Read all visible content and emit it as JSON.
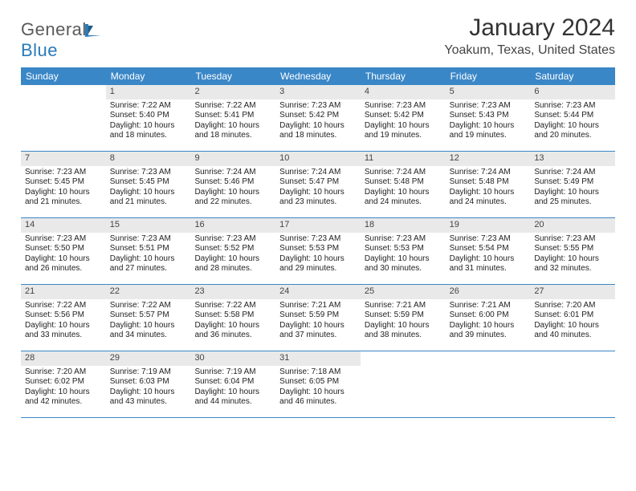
{
  "logo": {
    "text1": "General",
    "text2": "Blue",
    "color_gray": "#5a5a5a",
    "color_blue": "#2a7ab8"
  },
  "title": "January 2024",
  "location": "Yoakum, Texas, United States",
  "colors": {
    "header_bg": "#3a87c7",
    "header_fg": "#ffffff",
    "daynum_bg": "#e9e9e9",
    "border": "#3a87c7",
    "body_bg": "#ffffff"
  },
  "day_headers": [
    "Sunday",
    "Monday",
    "Tuesday",
    "Wednesday",
    "Thursday",
    "Friday",
    "Saturday"
  ],
  "weeks": [
    [
      {},
      {
        "n": "1",
        "sr": "Sunrise: 7:22 AM",
        "ss": "Sunset: 5:40 PM",
        "dl1": "Daylight: 10 hours",
        "dl2": "and 18 minutes."
      },
      {
        "n": "2",
        "sr": "Sunrise: 7:22 AM",
        "ss": "Sunset: 5:41 PM",
        "dl1": "Daylight: 10 hours",
        "dl2": "and 18 minutes."
      },
      {
        "n": "3",
        "sr": "Sunrise: 7:23 AM",
        "ss": "Sunset: 5:42 PM",
        "dl1": "Daylight: 10 hours",
        "dl2": "and 18 minutes."
      },
      {
        "n": "4",
        "sr": "Sunrise: 7:23 AM",
        "ss": "Sunset: 5:42 PM",
        "dl1": "Daylight: 10 hours",
        "dl2": "and 19 minutes."
      },
      {
        "n": "5",
        "sr": "Sunrise: 7:23 AM",
        "ss": "Sunset: 5:43 PM",
        "dl1": "Daylight: 10 hours",
        "dl2": "and 19 minutes."
      },
      {
        "n": "6",
        "sr": "Sunrise: 7:23 AM",
        "ss": "Sunset: 5:44 PM",
        "dl1": "Daylight: 10 hours",
        "dl2": "and 20 minutes."
      }
    ],
    [
      {
        "n": "7",
        "sr": "Sunrise: 7:23 AM",
        "ss": "Sunset: 5:45 PM",
        "dl1": "Daylight: 10 hours",
        "dl2": "and 21 minutes."
      },
      {
        "n": "8",
        "sr": "Sunrise: 7:23 AM",
        "ss": "Sunset: 5:45 PM",
        "dl1": "Daylight: 10 hours",
        "dl2": "and 21 minutes."
      },
      {
        "n": "9",
        "sr": "Sunrise: 7:24 AM",
        "ss": "Sunset: 5:46 PM",
        "dl1": "Daylight: 10 hours",
        "dl2": "and 22 minutes."
      },
      {
        "n": "10",
        "sr": "Sunrise: 7:24 AM",
        "ss": "Sunset: 5:47 PM",
        "dl1": "Daylight: 10 hours",
        "dl2": "and 23 minutes."
      },
      {
        "n": "11",
        "sr": "Sunrise: 7:24 AM",
        "ss": "Sunset: 5:48 PM",
        "dl1": "Daylight: 10 hours",
        "dl2": "and 24 minutes."
      },
      {
        "n": "12",
        "sr": "Sunrise: 7:24 AM",
        "ss": "Sunset: 5:48 PM",
        "dl1": "Daylight: 10 hours",
        "dl2": "and 24 minutes."
      },
      {
        "n": "13",
        "sr": "Sunrise: 7:24 AM",
        "ss": "Sunset: 5:49 PM",
        "dl1": "Daylight: 10 hours",
        "dl2": "and 25 minutes."
      }
    ],
    [
      {
        "n": "14",
        "sr": "Sunrise: 7:23 AM",
        "ss": "Sunset: 5:50 PM",
        "dl1": "Daylight: 10 hours",
        "dl2": "and 26 minutes."
      },
      {
        "n": "15",
        "sr": "Sunrise: 7:23 AM",
        "ss": "Sunset: 5:51 PM",
        "dl1": "Daylight: 10 hours",
        "dl2": "and 27 minutes."
      },
      {
        "n": "16",
        "sr": "Sunrise: 7:23 AM",
        "ss": "Sunset: 5:52 PM",
        "dl1": "Daylight: 10 hours",
        "dl2": "and 28 minutes."
      },
      {
        "n": "17",
        "sr": "Sunrise: 7:23 AM",
        "ss": "Sunset: 5:53 PM",
        "dl1": "Daylight: 10 hours",
        "dl2": "and 29 minutes."
      },
      {
        "n": "18",
        "sr": "Sunrise: 7:23 AM",
        "ss": "Sunset: 5:53 PM",
        "dl1": "Daylight: 10 hours",
        "dl2": "and 30 minutes."
      },
      {
        "n": "19",
        "sr": "Sunrise: 7:23 AM",
        "ss": "Sunset: 5:54 PM",
        "dl1": "Daylight: 10 hours",
        "dl2": "and 31 minutes."
      },
      {
        "n": "20",
        "sr": "Sunrise: 7:23 AM",
        "ss": "Sunset: 5:55 PM",
        "dl1": "Daylight: 10 hours",
        "dl2": "and 32 minutes."
      }
    ],
    [
      {
        "n": "21",
        "sr": "Sunrise: 7:22 AM",
        "ss": "Sunset: 5:56 PM",
        "dl1": "Daylight: 10 hours",
        "dl2": "and 33 minutes."
      },
      {
        "n": "22",
        "sr": "Sunrise: 7:22 AM",
        "ss": "Sunset: 5:57 PM",
        "dl1": "Daylight: 10 hours",
        "dl2": "and 34 minutes."
      },
      {
        "n": "23",
        "sr": "Sunrise: 7:22 AM",
        "ss": "Sunset: 5:58 PM",
        "dl1": "Daylight: 10 hours",
        "dl2": "and 36 minutes."
      },
      {
        "n": "24",
        "sr": "Sunrise: 7:21 AM",
        "ss": "Sunset: 5:59 PM",
        "dl1": "Daylight: 10 hours",
        "dl2": "and 37 minutes."
      },
      {
        "n": "25",
        "sr": "Sunrise: 7:21 AM",
        "ss": "Sunset: 5:59 PM",
        "dl1": "Daylight: 10 hours",
        "dl2": "and 38 minutes."
      },
      {
        "n": "26",
        "sr": "Sunrise: 7:21 AM",
        "ss": "Sunset: 6:00 PM",
        "dl1": "Daylight: 10 hours",
        "dl2": "and 39 minutes."
      },
      {
        "n": "27",
        "sr": "Sunrise: 7:20 AM",
        "ss": "Sunset: 6:01 PM",
        "dl1": "Daylight: 10 hours",
        "dl2": "and 40 minutes."
      }
    ],
    [
      {
        "n": "28",
        "sr": "Sunrise: 7:20 AM",
        "ss": "Sunset: 6:02 PM",
        "dl1": "Daylight: 10 hours",
        "dl2": "and 42 minutes."
      },
      {
        "n": "29",
        "sr": "Sunrise: 7:19 AM",
        "ss": "Sunset: 6:03 PM",
        "dl1": "Daylight: 10 hours",
        "dl2": "and 43 minutes."
      },
      {
        "n": "30",
        "sr": "Sunrise: 7:19 AM",
        "ss": "Sunset: 6:04 PM",
        "dl1": "Daylight: 10 hours",
        "dl2": "and 44 minutes."
      },
      {
        "n": "31",
        "sr": "Sunrise: 7:18 AM",
        "ss": "Sunset: 6:05 PM",
        "dl1": "Daylight: 10 hours",
        "dl2": "and 46 minutes."
      },
      {},
      {},
      {}
    ]
  ]
}
